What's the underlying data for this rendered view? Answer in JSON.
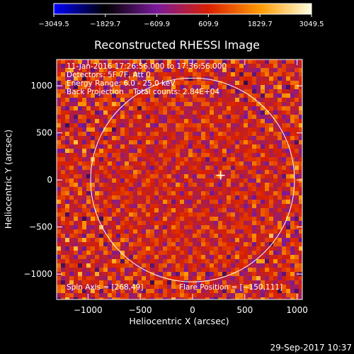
{
  "chart_data": {
    "type": "heatmap",
    "title": "Reconstructed RHESSI Image",
    "xlabel": "Heliocentric X (arcsec)",
    "ylabel": "Heliocentric Y (arcsec)",
    "xlim": [
      -1300,
      1050
    ],
    "ylim": [
      -1270,
      1280
    ],
    "x_ticks": [
      -1000,
      -500,
      0,
      500,
      1000
    ],
    "x_tick_labels": [
      "−1000",
      "−500",
      "0",
      "500",
      "1000"
    ],
    "y_ticks": [
      -1000,
      -500,
      0,
      500,
      1000
    ],
    "y_tick_labels": [
      "−1000",
      "−500",
      "0",
      "500",
      "1000"
    ],
    "colorbar": {
      "range": [
        -3049.5,
        3049.5
      ],
      "tick_values": [
        -3049.5,
        -1829.7,
        -609.9,
        609.9,
        1829.7,
        3049.5
      ],
      "tick_labels": [
        "−3049.5",
        "−1829.7",
        "−609.9",
        "609.9",
        "1829.7",
        "3049.5"
      ],
      "colormap": [
        "#0000ff",
        "#000000",
        "#7a1a9c",
        "#d92000",
        "#ff9a00",
        "#ffffe0"
      ]
    },
    "annotations": [
      "11-Jan-2016 17:26:56.000 to 17:36:56.000",
      "Detectors: 5F 7F, Att 0",
      "Energy Range: 6.0 - 25.0 keV",
      "Back Projection    Total counts: 2.84E+04"
    ],
    "spin_axis_label": "Spin Axis = [268,49]",
    "flare_position_label": "Flare Position = [−150,111]",
    "spin_axis": [
      268,
      49
    ],
    "solar_limb_radius": 975,
    "grid": false
  },
  "footer_timestamp": "29-Sep-2017 10:37",
  "colors": {
    "background": "#000000",
    "foreground": "#ffffff"
  }
}
